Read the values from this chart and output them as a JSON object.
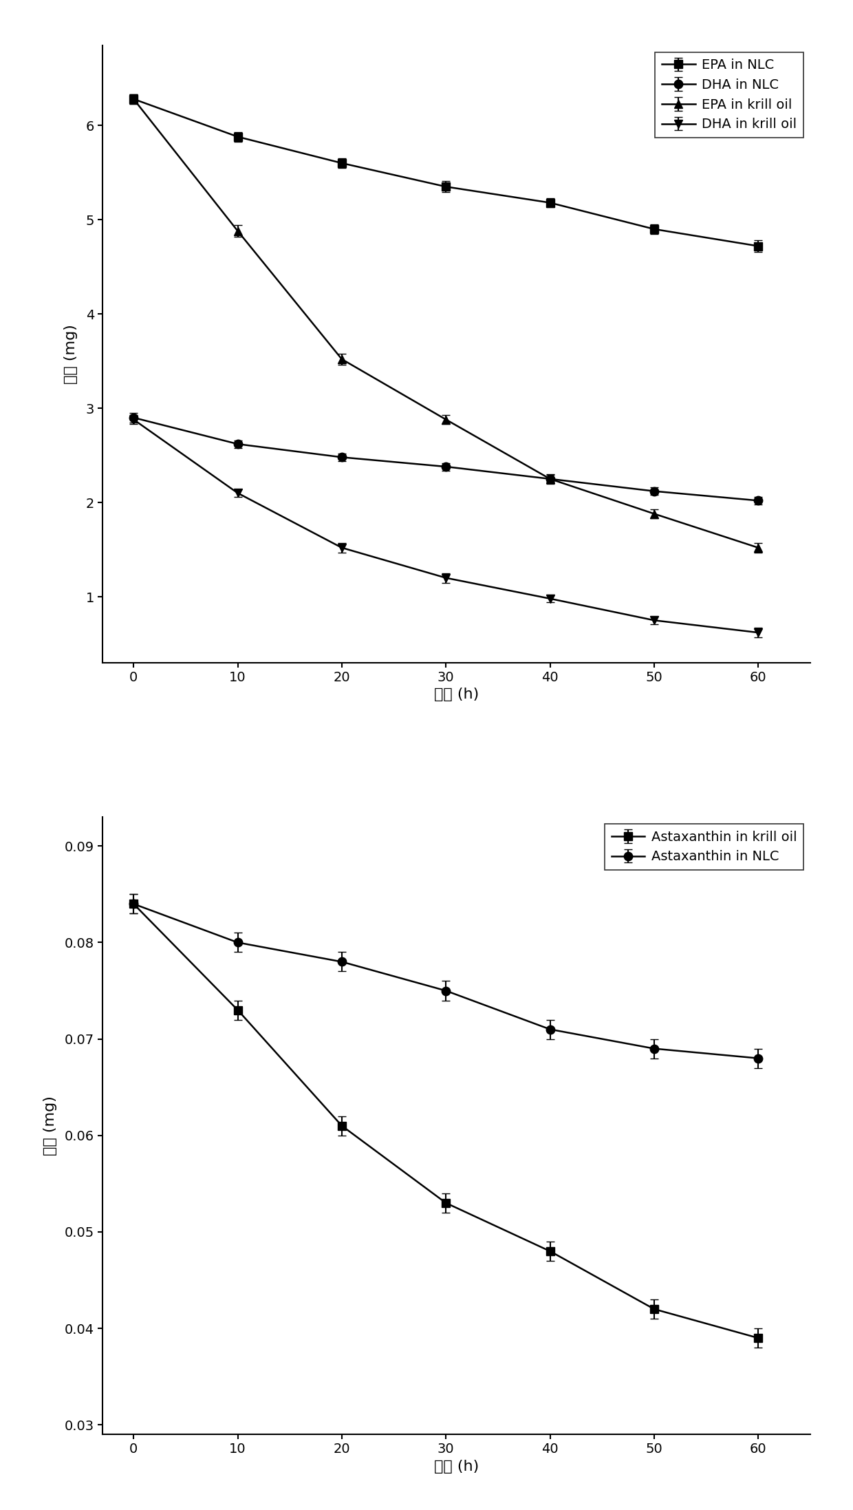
{
  "plot1": {
    "xlabel": "时间 (h)",
    "ylabel": "含量 (mg)",
    "xlim": [
      -3,
      65
    ],
    "ylim": [
      0.3,
      6.85
    ],
    "xticks": [
      0,
      10,
      20,
      30,
      40,
      50,
      60
    ],
    "yticks": [
      1,
      2,
      3,
      4,
      5,
      6
    ],
    "series": [
      {
        "label": "EPA in NLC",
        "x": [
          0,
          10,
          20,
          30,
          40,
          50,
          60
        ],
        "y": [
          6.28,
          5.88,
          5.6,
          5.35,
          5.18,
          4.9,
          4.72
        ],
        "yerr": [
          0.05,
          0.05,
          0.05,
          0.06,
          0.05,
          0.05,
          0.06
        ],
        "marker": "s",
        "markersize": 9
      },
      {
        "label": "DHA in NLC",
        "x": [
          0,
          10,
          20,
          30,
          40,
          50,
          60
        ],
        "y": [
          2.9,
          2.62,
          2.48,
          2.38,
          2.25,
          2.12,
          2.02
        ],
        "yerr": [
          0.05,
          0.04,
          0.04,
          0.04,
          0.04,
          0.04,
          0.04
        ],
        "marker": "o",
        "markersize": 9
      },
      {
        "label": "EPA in krill oil",
        "x": [
          0,
          10,
          20,
          30,
          40,
          50,
          60
        ],
        "y": [
          6.28,
          4.88,
          3.52,
          2.88,
          2.25,
          1.88,
          1.52
        ],
        "yerr": [
          0.05,
          0.06,
          0.06,
          0.05,
          0.05,
          0.05,
          0.05
        ],
        "marker": "^",
        "markersize": 9
      },
      {
        "label": "DHA in krill oil",
        "x": [
          0,
          10,
          20,
          30,
          40,
          50,
          60
        ],
        "y": [
          2.88,
          2.1,
          1.52,
          1.2,
          0.98,
          0.75,
          0.62
        ],
        "yerr": [
          0.05,
          0.04,
          0.05,
          0.05,
          0.04,
          0.04,
          0.05
        ],
        "marker": "v",
        "markersize": 9
      }
    ],
    "legend_loc": "upper right",
    "legend_fontsize": 14
  },
  "plot2": {
    "xlabel": "时间 (h)",
    "ylabel": "含量 (mg)",
    "xlim": [
      -3,
      65
    ],
    "ylim": [
      0.029,
      0.093
    ],
    "xticks": [
      0,
      10,
      20,
      30,
      40,
      50,
      60
    ],
    "yticks": [
      0.03,
      0.04,
      0.05,
      0.06,
      0.07,
      0.08,
      0.09
    ],
    "ytick_labels": [
      "0.03",
      "0.04",
      "0.05",
      "0.06",
      "0.07",
      "0.08",
      "0.09"
    ],
    "series": [
      {
        "label": "Astaxanthin in krill oil",
        "x": [
          0,
          10,
          20,
          30,
          40,
          50,
          60
        ],
        "y": [
          0.084,
          0.073,
          0.061,
          0.053,
          0.048,
          0.042,
          0.039
        ],
        "yerr": [
          0.001,
          0.001,
          0.001,
          0.001,
          0.001,
          0.001,
          0.001
        ],
        "marker": "s",
        "markersize": 9
      },
      {
        "label": "Astaxanthin in NLC",
        "x": [
          0,
          10,
          20,
          30,
          40,
          50,
          60
        ],
        "y": [
          0.084,
          0.08,
          0.078,
          0.075,
          0.071,
          0.069,
          0.068
        ],
        "yerr": [
          0.001,
          0.001,
          0.001,
          0.001,
          0.001,
          0.001,
          0.001
        ],
        "marker": "o",
        "markersize": 9
      }
    ],
    "legend_loc": "upper right",
    "legend_fontsize": 14
  },
  "line_color": "#000000",
  "linewidth": 1.8,
  "capsize": 4,
  "elinewidth": 1.5,
  "tick_fontsize": 14,
  "label_fontsize": 16,
  "background_color": "#ffffff"
}
